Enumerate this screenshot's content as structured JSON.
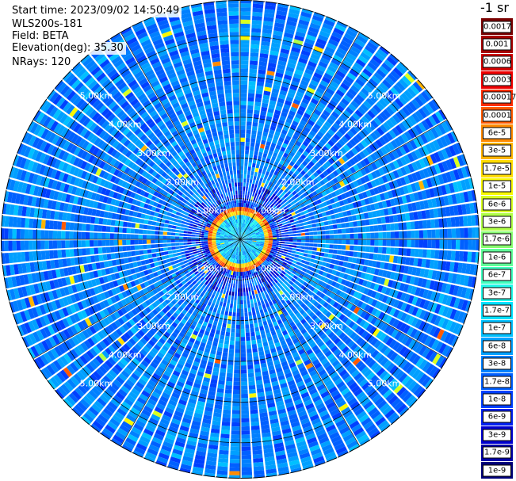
{
  "header": {
    "start_time": "Start time: 2023/09/02 14:50:49",
    "instrument": "WLS200s-181",
    "field": "Field: BETA",
    "elevation": "Elevation(deg): 35.30",
    "nrays": "NRays: 120"
  },
  "colorbar": {
    "title": "-1 sr",
    "labels": [
      "0.0017",
      "0.001",
      "0.0006",
      "0.0003",
      "0.00017",
      "0.0001",
      "6e-5",
      "3e-5",
      "1.7e-5",
      "1e-5",
      "6e-6",
      "3e-6",
      "1.7e-6",
      "1e-6",
      "6e-7",
      "3e-7",
      "1.7e-7",
      "1e-7",
      "6e-8",
      "3e-8",
      "1.7e-8",
      "1e-8",
      "6e-9",
      "3e-9",
      "1.7e-9",
      "1e-9"
    ],
    "colors": [
      "#7a0000",
      "#a50000",
      "#d00000",
      "#f00000",
      "#ff2d00",
      "#ff5a00",
      "#ff8a00",
      "#ffb400",
      "#ffdc00",
      "#f8f800",
      "#d8ff20",
      "#b0ff48",
      "#88ff70",
      "#60ff98",
      "#40ffc0",
      "#20f8e8",
      "#00e0ff",
      "#00c0ff",
      "#00a0ff",
      "#0080ff",
      "#0060ff",
      "#0040ff",
      "#0020f0",
      "#0000d0",
      "#0000a8",
      "#00007a"
    ]
  },
  "chart_data": {
    "type": "polar",
    "rays": 120,
    "range_unit": "km",
    "range_rings_km": [
      1,
      2,
      3,
      4,
      5
    ],
    "range_labels": [
      "1.00km",
      "2.00km",
      "3.00km",
      "4.00km",
      "5.00km"
    ],
    "label_directions_deg": [
      45,
      135,
      225,
      315
    ],
    "max_range_km": 5.88,
    "spoke_angles_deg": [
      0,
      30,
      60,
      90,
      120,
      150,
      180,
      210,
      240,
      270,
      300,
      330
    ],
    "ring_feature": {
      "inner_km": 0.6,
      "peak_km": 0.72,
      "outer_km": 0.85,
      "peak_value": 0.0003
    },
    "background_value": 3e-08
  }
}
